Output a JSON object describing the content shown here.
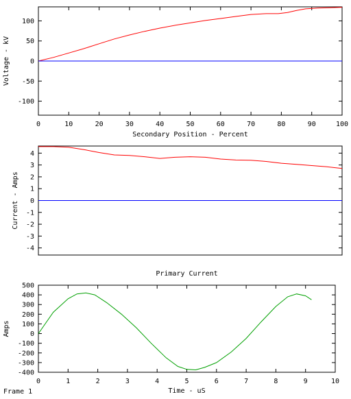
{
  "frame_label": "Frame 1",
  "colors": {
    "red": "#ff0000",
    "blue": "#0000ff",
    "green": "#00a000",
    "axis": "#000000"
  },
  "chart_data": [
    {
      "id": "voltage",
      "type": "line",
      "title": "",
      "xlabel": "Secondary Position - Percent",
      "ylabel": "Voltage - kV",
      "xlim": [
        0,
        100
      ],
      "ylim": [
        -135,
        135
      ],
      "xticks": [
        0,
        10,
        20,
        30,
        40,
        50,
        60,
        70,
        80,
        90,
        100
      ],
      "yticks": [
        -100,
        -50,
        0,
        50,
        100
      ],
      "grid": false,
      "series": [
        {
          "color": "#ff0000",
          "x": [
            0,
            5,
            10,
            15,
            20,
            25,
            30,
            35,
            40,
            45,
            50,
            55,
            60,
            65,
            70,
            75,
            79,
            82,
            85,
            88,
            92,
            96,
            100
          ],
          "y": [
            0,
            9,
            20,
            31,
            43,
            55,
            65,
            74,
            82,
            89,
            95,
            101,
            106,
            111,
            116,
            118,
            118,
            121,
            126,
            130,
            132,
            133,
            134
          ]
        },
        {
          "color": "#0000ff",
          "x": [
            0,
            100
          ],
          "y": [
            0,
            0
          ]
        }
      ]
    },
    {
      "id": "current",
      "type": "line",
      "title": "",
      "xlabel": "",
      "ylabel": "Current - Amps",
      "xlim": [
        0,
        100
      ],
      "ylim": [
        -4.6,
        4.6
      ],
      "xticks": [],
      "yticks": [
        -4,
        -3,
        -2,
        -1,
        0,
        1,
        2,
        3,
        4
      ],
      "grid": false,
      "series": [
        {
          "color": "#ff0000",
          "x": [
            0,
            5,
            10,
            15,
            20,
            25,
            30,
            35,
            40,
            45,
            50,
            55,
            60,
            65,
            70,
            75,
            80,
            85,
            90,
            95,
            100
          ],
          "y": [
            4.55,
            4.55,
            4.5,
            4.3,
            4.05,
            3.85,
            3.8,
            3.7,
            3.55,
            3.65,
            3.7,
            3.65,
            3.5,
            3.42,
            3.4,
            3.3,
            3.15,
            3.05,
            2.95,
            2.85,
            2.7
          ]
        },
        {
          "color": "#0000ff",
          "x": [
            0,
            100
          ],
          "y": [
            0,
            0
          ]
        }
      ]
    },
    {
      "id": "primary",
      "type": "line",
      "title": "Primary Current",
      "xlabel": "Time - uS",
      "ylabel": "Amps",
      "xlim": [
        0,
        10
      ],
      "ylim": [
        -400,
        500
      ],
      "xticks": [
        0,
        1,
        2,
        3,
        4,
        5,
        6,
        7,
        8,
        9,
        10
      ],
      "yticks": [
        -400,
        -300,
        -200,
        -100,
        0,
        100,
        200,
        300,
        400,
        500
      ],
      "grid": false,
      "series": [
        {
          "color": "#00a000",
          "x": [
            0,
            0.5,
            1.0,
            1.3,
            1.6,
            1.9,
            2.3,
            2.8,
            3.3,
            3.8,
            4.3,
            4.7,
            5.0,
            5.3,
            5.6,
            6.0,
            6.5,
            7.0,
            7.5,
            8.0,
            8.4,
            8.7,
            9.0,
            9.2
          ],
          "y": [
            0,
            220,
            360,
            410,
            420,
            400,
            320,
            200,
            60,
            -100,
            -250,
            -340,
            -370,
            -375,
            -350,
            -300,
            -190,
            -50,
            120,
            280,
            380,
            410,
            390,
            350
          ]
        }
      ]
    }
  ]
}
